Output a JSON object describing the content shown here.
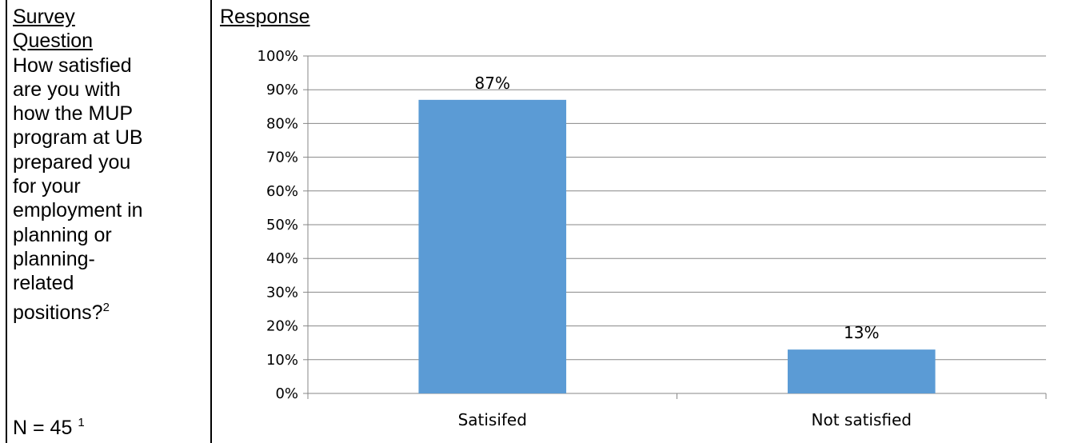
{
  "question_column": {
    "header_line1": "Survey",
    "header_line2": "Question",
    "question_text": "How satisfied\nare you with\nhow the MUP\nprogram at UB\nprepared you\nfor your\nemployment in\nplanning or\nplanning-\nrelated\npositions?",
    "question_footnote": "2",
    "n_label": "N = 45",
    "n_footnote": "1"
  },
  "response_column": {
    "header": "Response"
  },
  "chart_data": {
    "type": "bar",
    "categories": [
      "Satisifed",
      "Not satisfied"
    ],
    "values": [
      87,
      13
    ],
    "data_labels": [
      "87%",
      "13%"
    ],
    "ylim": [
      0,
      100
    ],
    "yticks": [
      0,
      10,
      20,
      30,
      40,
      50,
      60,
      70,
      80,
      90,
      100
    ],
    "ytick_labels": [
      "0%",
      "10%",
      "20%",
      "30%",
      "40%",
      "50%",
      "60%",
      "70%",
      "80%",
      "90%",
      "100%"
    ],
    "grid": true,
    "bar_color": "#5B9BD5",
    "title": "",
    "xlabel": "",
    "ylabel": ""
  }
}
